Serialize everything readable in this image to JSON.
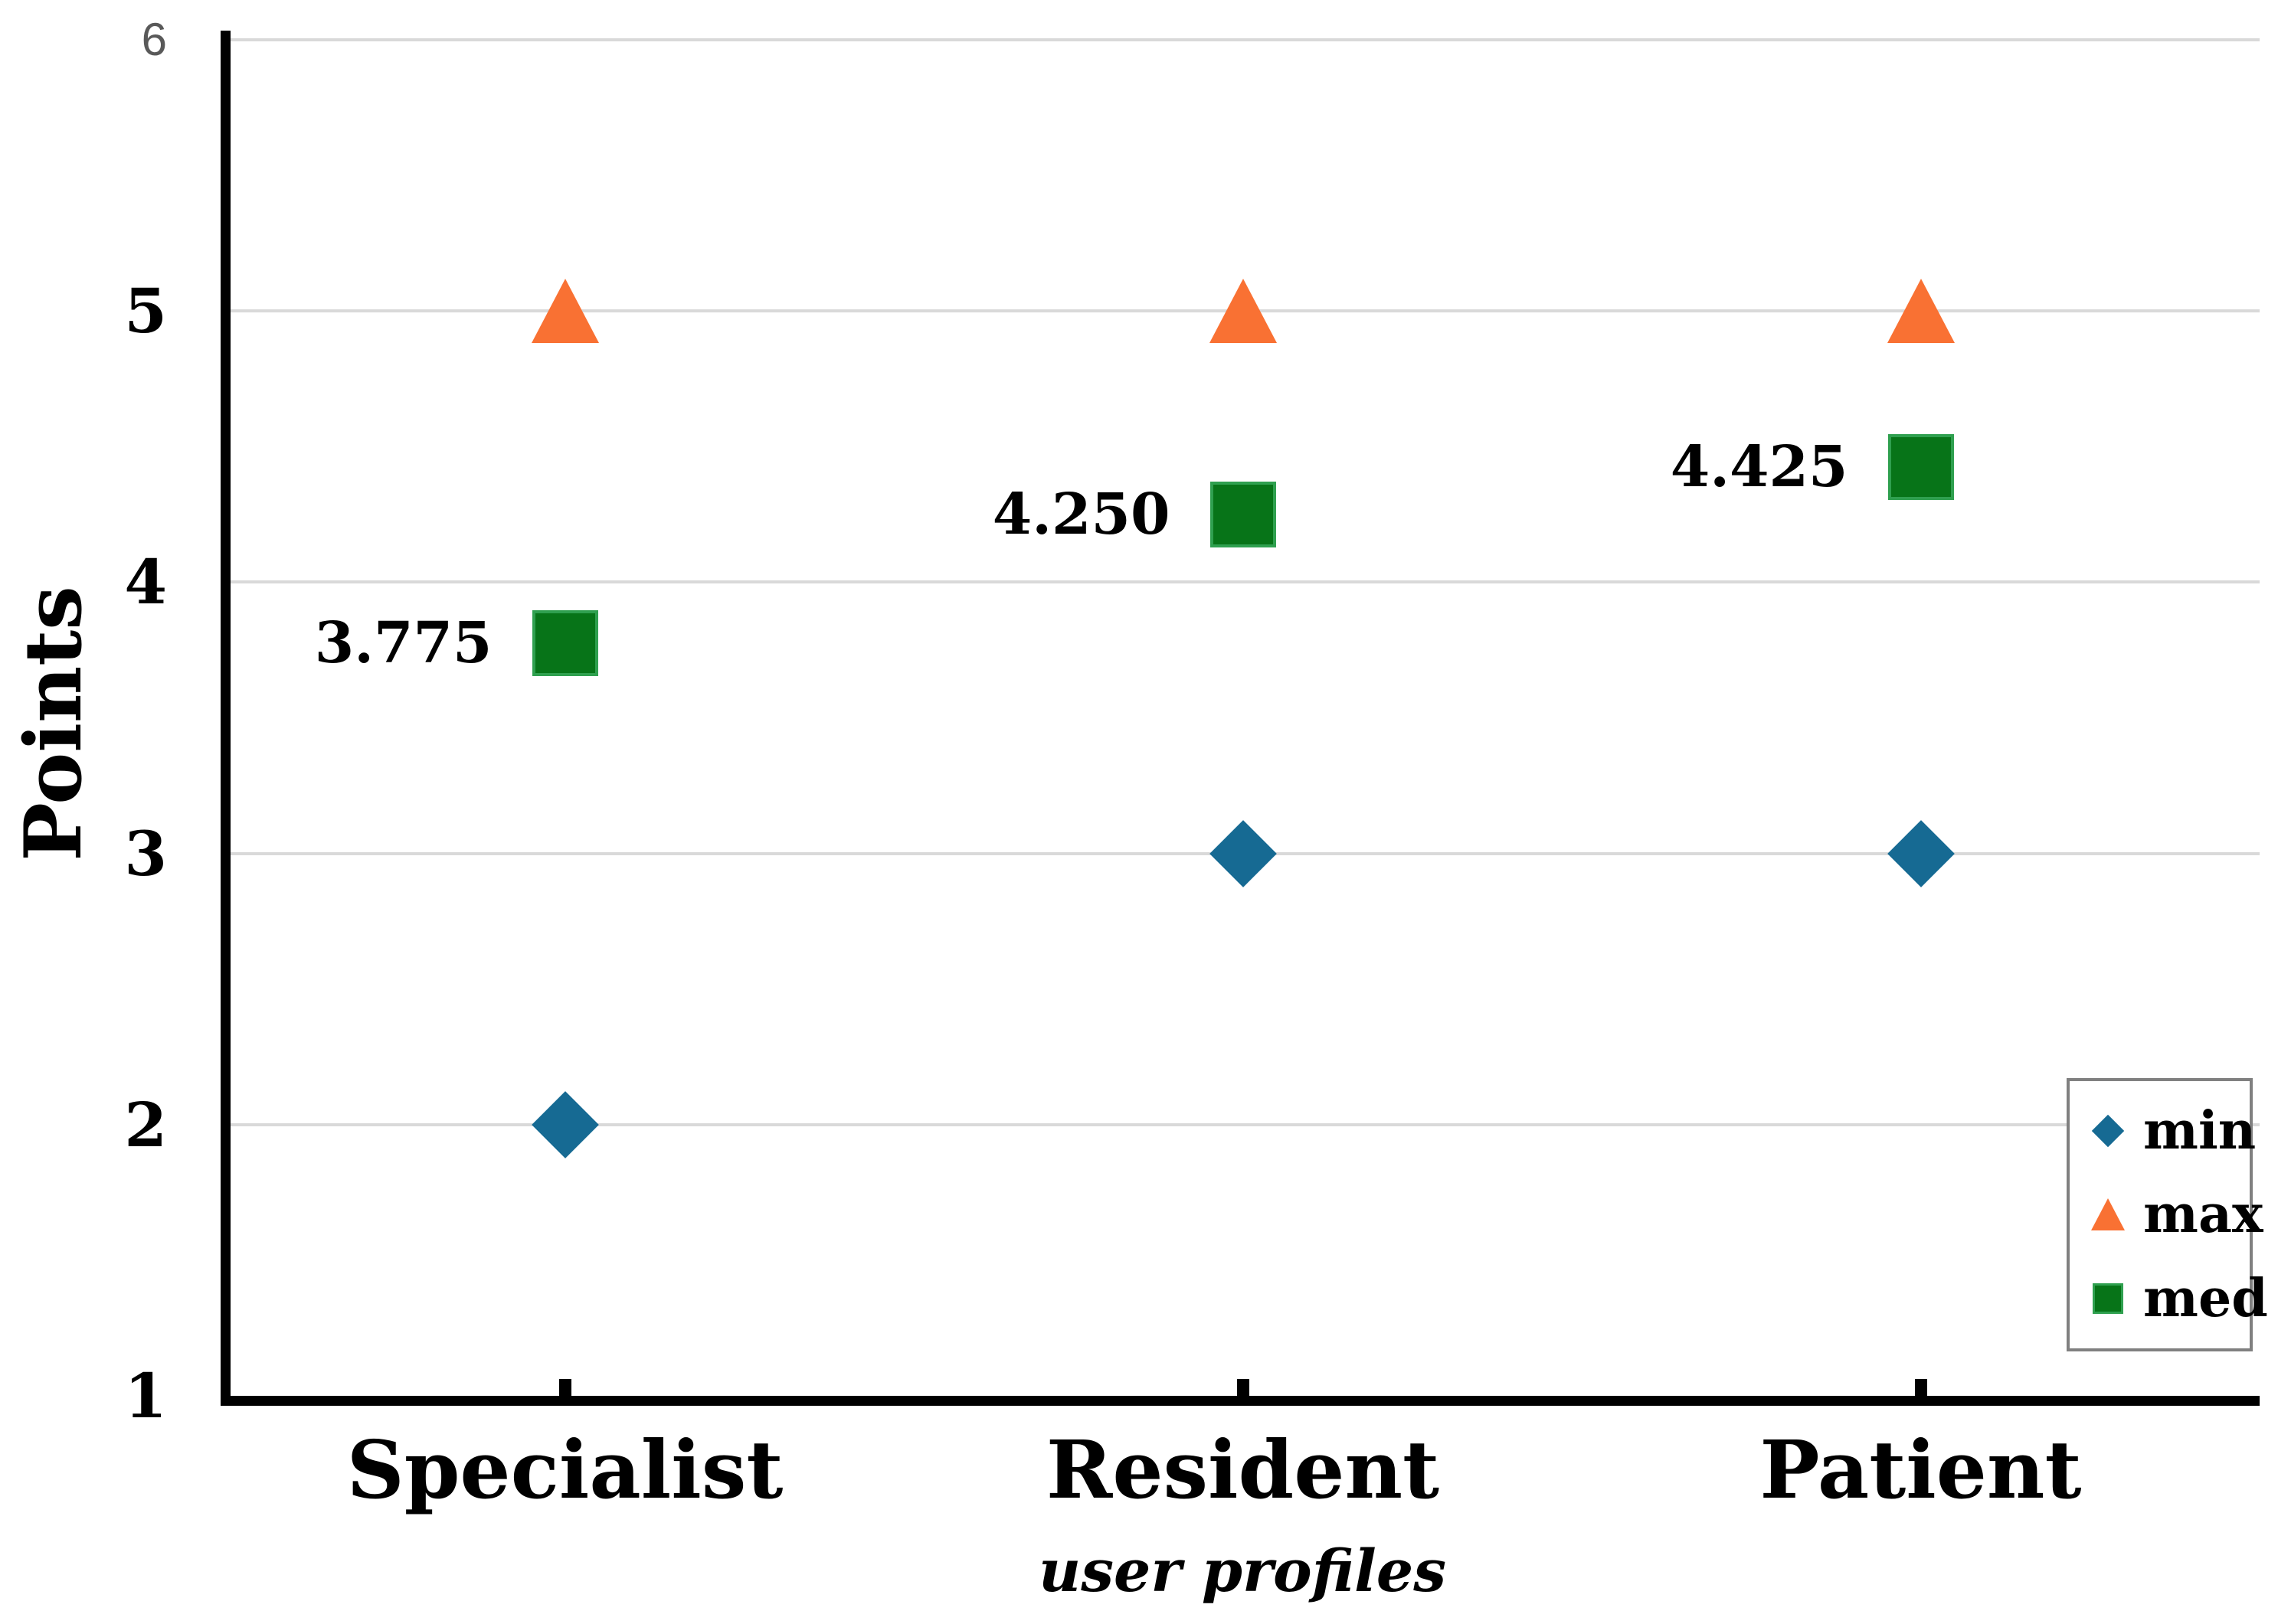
{
  "chart_data": {
    "type": "scatter",
    "categories": [
      "Specialist",
      "Resident",
      "Patient"
    ],
    "series": [
      {
        "name": "min",
        "marker": "diamond",
        "color": "#166A93",
        "values": [
          2,
          3,
          3
        ]
      },
      {
        "name": "max",
        "marker": "triangle",
        "color": "#F97133",
        "values": [
          5,
          5,
          5
        ]
      },
      {
        "name": "med",
        "marker": "square",
        "color": "#077418",
        "border_color": "#2FA04F",
        "values": [
          3.775,
          4.25,
          4.425
        ],
        "data_labels": [
          "3.775",
          "4.250",
          "4.425"
        ]
      }
    ],
    "title": "",
    "xlabel": "user profiles",
    "ylabel": "Points",
    "ylim": [
      1,
      6
    ],
    "yticks": [
      "1",
      "2",
      "3",
      "4",
      "5",
      "6"
    ],
    "grid": "horizontal gridlines at 2,3,4,5,6",
    "legend_position": "bottom-right",
    "legend_items": [
      "min",
      "max",
      "med"
    ]
  },
  "colors": {
    "gridline": "#D9D9D9",
    "axis": "#000000",
    "top_tick_label": "#595959",
    "legend_border": "#808080",
    "background": "#FFFFFF"
  }
}
